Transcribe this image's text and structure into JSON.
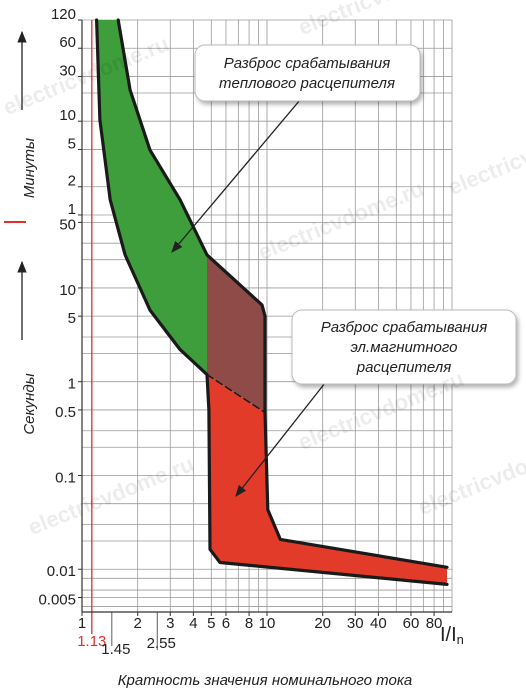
{
  "chart_data": {
    "type": "region",
    "x_label": "Кратность значения номинального тока",
    "x_unit": "I/I",
    "x_unit_sub": "n",
    "y_label_minutes": "Минуты",
    "y_label_seconds": "Секунды",
    "watermark": "electricvdome.ru",
    "xlog": true,
    "ylog": true,
    "xlim": [
      1,
      100
    ],
    "ylim": [
      0.0035,
      7200
    ],
    "xticks": [
      1,
      2,
      3,
      4,
      5,
      6,
      8,
      10,
      20,
      30,
      40,
      60,
      80
    ],
    "xmarks": [
      1.13,
      1.45,
      2.55
    ],
    "xmark_colors": [
      "#e0302a",
      "#222222",
      "#222222"
    ],
    "xmark_lines": [
      true,
      false,
      false
    ],
    "yticks": [
      {
        "value": 7200,
        "label": "120"
      },
      {
        "value": 3600,
        "label": "60"
      },
      {
        "value": 1800,
        "label": "30"
      },
      {
        "value": 600,
        "label": "10"
      },
      {
        "value": 300,
        "label": "5"
      },
      {
        "value": 120,
        "label": "2"
      },
      {
        "value": 60,
        "label": "1"
      },
      50,
      10,
      5,
      1,
      0.5,
      0.1,
      0.01,
      0.005
    ],
    "xgrid": [
      1,
      2,
      3,
      4,
      5,
      6,
      7,
      8,
      9,
      10,
      20,
      30,
      40,
      50,
      60,
      70,
      80,
      90,
      100
    ],
    "ygrid": [
      0.004,
      0.005,
      0.006,
      0.008,
      0.01,
      0.02,
      0.03,
      0.05,
      0.1,
      0.2,
      0.3,
      0.5,
      1,
      2,
      3,
      5,
      10,
      20,
      30,
      50,
      60,
      120,
      300,
      600,
      1200,
      1800,
      3600,
      7200
    ],
    "grid": true,
    "regions": [
      {
        "color": "#3d9e3b",
        "x": [
          1.2,
          1.25,
          1.42,
          1.71,
          2.33,
          3.39,
          4.74,
          4.74,
          3.39,
          2.33,
          1.82,
          1.57
        ],
        "y": [
          7200,
          620,
          87,
          22.5,
          5.8,
          2.2,
          1.19,
          22.5,
          87,
          295,
          1290,
          7200
        ]
      },
      {
        "color": "#8e4b47",
        "x": [
          4.74,
          9.4,
          9.75,
          9.75,
          4.74
        ],
        "y": [
          22.5,
          6.6,
          5,
          0.47,
          1.19
        ]
      },
      {
        "color": "#e23b2a",
        "x": [
          4.74,
          9.75,
          10.1,
          11.8,
          94,
          94,
          5.57,
          4.92,
          4.85
        ],
        "y": [
          1.19,
          0.47,
          0.043,
          0.0208,
          0.0105,
          0.0069,
          0.0118,
          0.0163,
          0.5
        ]
      }
    ],
    "outlines": [
      {
        "dashed": false,
        "x": [
          1.2,
          1.25,
          1.42,
          1.71,
          2.33,
          3.39,
          4.74,
          4.85,
          4.92,
          5.57,
          94
        ],
        "y": [
          7200,
          620,
          87,
          22.5,
          5.8,
          2.2,
          1.19,
          0.5,
          0.0163,
          0.0118,
          0.0069
        ]
      },
      {
        "dashed": false,
        "x": [
          1.57,
          1.82,
          2.33,
          3.39,
          4.74,
          9.4,
          9.75,
          9.75,
          10.1,
          11.8,
          94
        ],
        "y": [
          7200,
          1290,
          295,
          87,
          22.5,
          6.6,
          5,
          0.47,
          0.043,
          0.0208,
          0.0105
        ]
      },
      {
        "dashed": true,
        "x": [
          4.74,
          9.75
        ],
        "y": [
          1.19,
          0.47
        ]
      }
    ],
    "annotations": [
      {
        "lines": [
          "Разброс срабатывания",
          "теплового расцепителя"
        ]
      },
      {
        "lines": [
          "Разброс срабатывания",
          "эл.магнитного",
          "расцепителя"
        ]
      }
    ]
  }
}
